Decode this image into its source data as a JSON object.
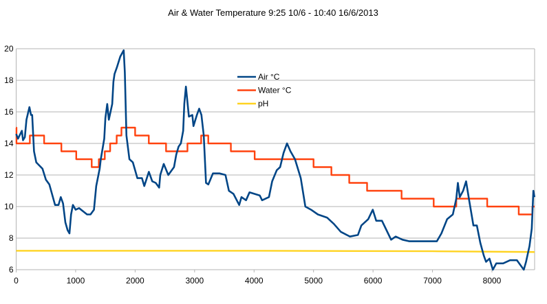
{
  "chart_data": {
    "type": "line",
    "title": "Air & Water Temperature 9:25 10/6 - 10:40 16/6/2013",
    "xlabel": "",
    "ylabel": "",
    "xlim": [
      0,
      8717
    ],
    "ylim": [
      6,
      20
    ],
    "x_ticks": [
      0,
      1000,
      2000,
      3000,
      4000,
      5000,
      6000,
      7000,
      8000
    ],
    "y_ticks": [
      6,
      8,
      10,
      12,
      14,
      16,
      18,
      20
    ],
    "grid": "horizontal",
    "legend_position": "top-center",
    "series": [
      {
        "name": "Air °C",
        "color": "#004586",
        "style": "line",
        "points": [
          [
            0,
            14.6
          ],
          [
            31,
            14.3
          ],
          [
            96,
            14.8
          ],
          [
            115,
            14.2
          ],
          [
            146,
            14.4
          ],
          [
            173,
            15.5
          ],
          [
            223,
            16.3
          ],
          [
            250,
            15.8
          ],
          [
            269,
            15.8
          ],
          [
            300,
            13.5
          ],
          [
            338,
            12.8
          ],
          [
            442,
            12.4
          ],
          [
            500,
            11.7
          ],
          [
            558,
            11.4
          ],
          [
            654,
            10.1
          ],
          [
            712,
            10.1
          ],
          [
            750,
            10.6
          ],
          [
            788,
            10.2
          ],
          [
            827,
            9.0
          ],
          [
            865,
            8.5
          ],
          [
            896,
            8.3
          ],
          [
            923,
            9.5
          ],
          [
            954,
            10.1
          ],
          [
            1000,
            9.8
          ],
          [
            1058,
            9.9
          ],
          [
            1192,
            9.5
          ],
          [
            1250,
            9.5
          ],
          [
            1308,
            9.8
          ],
          [
            1346,
            11.3
          ],
          [
            1404,
            12.4
          ],
          [
            1423,
            13.0
          ],
          [
            1481,
            14.3
          ],
          [
            1500,
            15.6
          ],
          [
            1531,
            16.5
          ],
          [
            1558,
            15.5
          ],
          [
            1615,
            16.5
          ],
          [
            1635,
            17.9
          ],
          [
            1654,
            18.4
          ],
          [
            1692,
            18.8
          ],
          [
            1750,
            19.5
          ],
          [
            1808,
            19.9
          ],
          [
            1827,
            18.5
          ],
          [
            1854,
            14.5
          ],
          [
            1904,
            13.0
          ],
          [
            1962,
            12.8
          ],
          [
            2038,
            11.8
          ],
          [
            2115,
            11.8
          ],
          [
            2154,
            11.3
          ],
          [
            2231,
            12.2
          ],
          [
            2288,
            11.6
          ],
          [
            2346,
            11.5
          ],
          [
            2404,
            11.2
          ],
          [
            2423,
            12.0
          ],
          [
            2481,
            12.7
          ],
          [
            2558,
            12.0
          ],
          [
            2654,
            12.5
          ],
          [
            2692,
            13.3
          ],
          [
            2731,
            13.8
          ],
          [
            2769,
            14.0
          ],
          [
            2808,
            14.8
          ],
          [
            2827,
            16.5
          ],
          [
            2854,
            17.6
          ],
          [
            2904,
            15.7
          ],
          [
            2962,
            15.8
          ],
          [
            2981,
            15.1
          ],
          [
            3038,
            15.8
          ],
          [
            3077,
            16.2
          ],
          [
            3115,
            15.8
          ],
          [
            3154,
            14.5
          ],
          [
            3192,
            11.5
          ],
          [
            3231,
            11.4
          ],
          [
            3308,
            12.1
          ],
          [
            3423,
            12.1
          ],
          [
            3519,
            12.0
          ],
          [
            3577,
            11.0
          ],
          [
            3654,
            10.8
          ],
          [
            3750,
            10.1
          ],
          [
            3788,
            10.6
          ],
          [
            3865,
            10.4
          ],
          [
            3923,
            10.9
          ],
          [
            4096,
            10.7
          ],
          [
            4135,
            10.4
          ],
          [
            4250,
            10.6
          ],
          [
            4304,
            11.6
          ],
          [
            4381,
            12.3
          ],
          [
            4438,
            12.5
          ],
          [
            4496,
            13.4
          ],
          [
            4554,
            14.0
          ],
          [
            4612,
            13.5
          ],
          [
            4688,
            13.0
          ],
          [
            4785,
            11.8
          ],
          [
            4862,
            10.0
          ],
          [
            4958,
            9.8
          ],
          [
            5073,
            9.5
          ],
          [
            5227,
            9.3
          ],
          [
            5342,
            8.9
          ],
          [
            5458,
            8.4
          ],
          [
            5612,
            8.1
          ],
          [
            5746,
            8.2
          ],
          [
            5804,
            8.8
          ],
          [
            5919,
            9.2
          ],
          [
            5996,
            9.8
          ],
          [
            6054,
            9.1
          ],
          [
            6150,
            9.1
          ],
          [
            6227,
            8.5
          ],
          [
            6304,
            7.9
          ],
          [
            6381,
            8.1
          ],
          [
            6496,
            7.9
          ],
          [
            6612,
            7.8
          ],
          [
            6765,
            7.8
          ],
          [
            6919,
            7.8
          ],
          [
            7073,
            7.8
          ],
          [
            7150,
            8.3
          ],
          [
            7246,
            9.2
          ],
          [
            7342,
            9.5
          ],
          [
            7400,
            10.5
          ],
          [
            7427,
            11.5
          ],
          [
            7458,
            10.6
          ],
          [
            7515,
            11.0
          ],
          [
            7565,
            11.6
          ],
          [
            7612,
            10.5
          ],
          [
            7688,
            8.8
          ],
          [
            7746,
            8.8
          ],
          [
            7804,
            7.7
          ],
          [
            7862,
            6.9
          ],
          [
            7900,
            6.5
          ],
          [
            7958,
            6.7
          ],
          [
            8015,
            6.0
          ],
          [
            8073,
            6.4
          ],
          [
            8188,
            6.4
          ],
          [
            8304,
            6.6
          ],
          [
            8419,
            6.6
          ],
          [
            8477,
            6.3
          ],
          [
            8535,
            6.0
          ],
          [
            8573,
            6.5
          ],
          [
            8631,
            7.5
          ],
          [
            8669,
            8.6
          ],
          [
            8696,
            11.0
          ],
          [
            8715,
            10.6
          ]
        ]
      },
      {
        "name": "Water °C",
        "color": "#ff420e",
        "style": "step",
        "points": [
          [
            0,
            15
          ],
          [
            5,
            14
          ],
          [
            230,
            14.5
          ],
          [
            470,
            14
          ],
          [
            760,
            13.5
          ],
          [
            1010,
            13
          ],
          [
            1270,
            12.5
          ],
          [
            1390,
            13
          ],
          [
            1490,
            13.5
          ],
          [
            1580,
            14
          ],
          [
            1690,
            14.5
          ],
          [
            1770,
            15
          ],
          [
            2000,
            14.5
          ],
          [
            2230,
            14
          ],
          [
            2520,
            13.5
          ],
          [
            2880,
            14
          ],
          [
            3110,
            14.5
          ],
          [
            3230,
            14
          ],
          [
            3610,
            13.5
          ],
          [
            4010,
            13
          ],
          [
            5000,
            12.5
          ],
          [
            5300,
            12
          ],
          [
            5600,
            11.5
          ],
          [
            5900,
            11
          ],
          [
            6480,
            10.5
          ],
          [
            7020,
            10
          ],
          [
            7400,
            10.5
          ],
          [
            7920,
            10
          ],
          [
            8450,
            9.5
          ],
          [
            8680,
            10
          ],
          [
            8717,
            10
          ]
        ]
      },
      {
        "name": "pH",
        "color": "#ffd320",
        "style": "line",
        "points": [
          [
            0,
            7.2
          ],
          [
            4000,
            7.2
          ],
          [
            7000,
            7.17
          ],
          [
            8717,
            7.12
          ]
        ]
      }
    ]
  }
}
